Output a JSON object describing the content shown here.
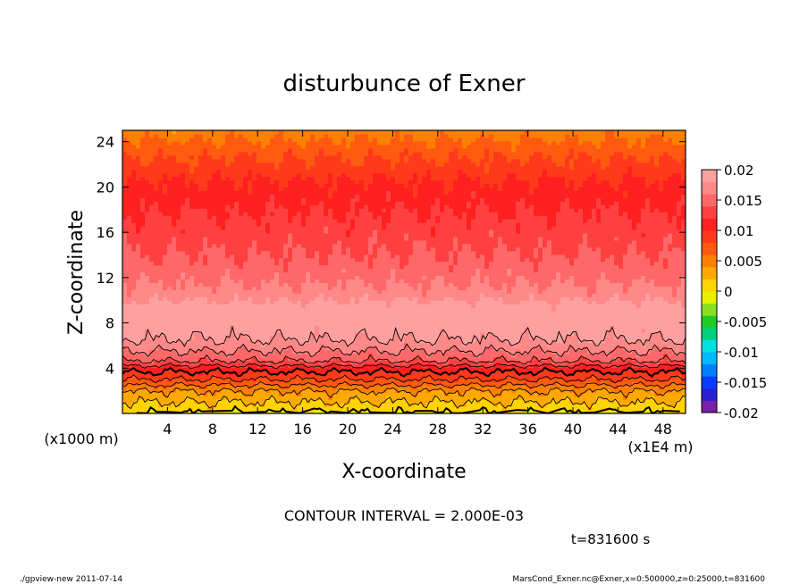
{
  "chart_data": {
    "type": "heatmap",
    "title": "disturbunce of Exner",
    "xlabel": "X-coordinate",
    "ylabel": "Z-coordinate",
    "x_unit_label": "(x1E4 m)",
    "y_unit_label": "(x1000 m)",
    "xlim": [
      0,
      50
    ],
    "ylim": [
      0,
      25
    ],
    "x_ticks": [
      "4",
      "8",
      "12",
      "16",
      "20",
      "24",
      "28",
      "32",
      "36",
      "40",
      "44",
      "48"
    ],
    "y_ticks": [
      "4",
      "8",
      "12",
      "16",
      "20",
      "24"
    ],
    "colorbar": {
      "min": -0.02,
      "max": 0.02,
      "tick_labels": [
        "0.02",
        "0.015",
        "0.01",
        "0.005",
        "0",
        "-0.005",
        "-0.01",
        "-0.015",
        "-0.02"
      ],
      "level_colors": [
        "#7a1fa8",
        "#2b1fd6",
        "#0a3cff",
        "#0080ff",
        "#00b8ff",
        "#00e0e0",
        "#00d080",
        "#22cc22",
        "#88e020",
        "#e8f000",
        "#ffd400",
        "#ffa800",
        "#ff7f00",
        "#ff5a10",
        "#ff3a1a",
        "#ff2020",
        "#ff4040",
        "#ff6868",
        "#ff8888",
        "#ffa0a0"
      ]
    },
    "contour_interval_text": "CONTOUR INTERVAL = 2.000E-03",
    "contour_interval": 0.002,
    "profile_by_height": {
      "z": [
        0,
        1,
        2,
        3,
        4,
        4.6,
        5.5,
        6.5,
        8,
        9.5,
        10.5,
        12,
        13.4,
        15,
        16.5,
        17.5,
        19,
        20.5,
        21.5,
        22.8,
        23.8,
        25
      ],
      "value": [
        0.0,
        0.002,
        0.004,
        0.008,
        0.011,
        0.014,
        0.016,
        0.018,
        0.0195,
        0.019,
        0.017,
        0.0155,
        0.0145,
        0.0135,
        0.0128,
        0.0122,
        0.0112,
        0.0102,
        0.009,
        0.0078,
        0.0065,
        0.005
      ]
    }
  },
  "annotations": {
    "time": "t=831600 s",
    "footer_left": "./gpview-new  2011-07-14",
    "footer_right": "MarsCond_Exner.nc@Exner,x=0:500000,z=0:25000,t=831600"
  }
}
